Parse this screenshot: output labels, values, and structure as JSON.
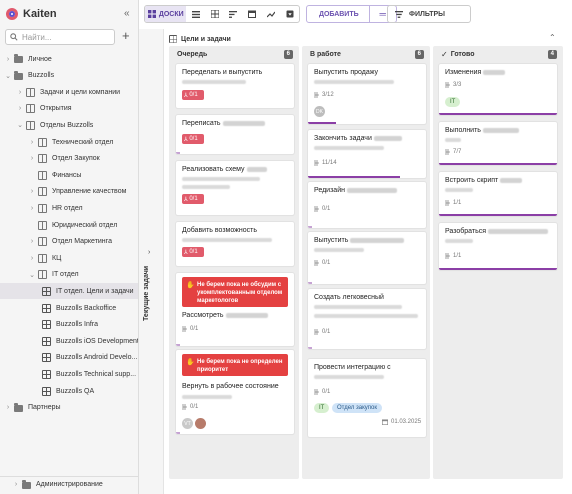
{
  "app": {
    "name": "Kaiten"
  },
  "sidebar": {
    "search_placeholder": "Найти...",
    "items": [
      {
        "label": "Личное",
        "type": "folder",
        "chevron": "›"
      },
      {
        "label": "Buzzolls",
        "type": "folder",
        "chevron": "⌄"
      },
      {
        "label": "Задачи и цели компании",
        "type": "space",
        "chevron": "›"
      },
      {
        "label": "Открытия",
        "type": "space",
        "chevron": "›"
      },
      {
        "label": "Отделы Buzzolls",
        "type": "space",
        "chevron": "⌄"
      },
      {
        "label": "Технический отдел",
        "type": "space",
        "chevron": "›"
      },
      {
        "label": "Отдел Закупок",
        "type": "space",
        "chevron": "›"
      },
      {
        "label": "Финансы",
        "type": "space",
        "chevron": ""
      },
      {
        "label": "Управление качеством",
        "type": "space",
        "chevron": "›"
      },
      {
        "label": "HR отдел",
        "type": "space",
        "chevron": "›"
      },
      {
        "label": "Юридический отдел",
        "type": "space",
        "chevron": ""
      },
      {
        "label": "Отдел Маркетинга",
        "type": "space",
        "chevron": "›"
      },
      {
        "label": "КЦ",
        "type": "space",
        "chevron": "›"
      },
      {
        "label": "IT отдел",
        "type": "space",
        "chevron": "⌄"
      },
      {
        "label": "IT отдел. Цели и задачи",
        "type": "board",
        "chevron": ""
      },
      {
        "label": "Buzzolls Backoffice",
        "type": "board",
        "chevron": ""
      },
      {
        "label": "Buzzolls Infra",
        "type": "board",
        "chevron": ""
      },
      {
        "label": "Buzzolls iOS Development",
        "type": "board",
        "chevron": ""
      },
      {
        "label": "Buzzolls Android Develo...",
        "type": "board",
        "chevron": ""
      },
      {
        "label": "Buzzolls Technical supp...",
        "type": "board",
        "chevron": ""
      },
      {
        "label": "Buzzolls QA",
        "type": "board",
        "chevron": ""
      },
      {
        "label": "Партнеры",
        "type": "folder",
        "chevron": "›"
      }
    ],
    "admin": "Администрирование"
  },
  "toolbar": {
    "view_boards": "ДОСКИ",
    "add_card": "ДОБАВИТЬ",
    "filters": "ФИЛЬТРЫ"
  },
  "lane": {
    "label": "Текущие задачи"
  },
  "board": {
    "title": "Цели и задачи"
  },
  "columns": [
    {
      "title": "Очередь",
      "count": "6"
    },
    {
      "title": "В работе",
      "count": "6"
    },
    {
      "title": "Готово",
      "count": "4"
    }
  ],
  "cards": {
    "q1": {
      "title": "Переделать и выпустить",
      "check": "0/1"
    },
    "q2": {
      "title": "Переписать",
      "check": "0/1"
    },
    "q3": {
      "title": "Реализовать схему",
      "check": "0/1"
    },
    "q4": {
      "title": "Добавить возможность",
      "check": "0/1"
    },
    "q5": {
      "note": "Не берем пока не обсудим с укомплектованным отделом маркетологов",
      "title": "Рассмотреть",
      "check": "0/1"
    },
    "q6": {
      "note": "Не берем пока не определен приоритет",
      "title": "Вернуть в рабочее состояние",
      "check": "0/1",
      "avatar": "VT"
    },
    "w1": {
      "title": "Выпустить продажу",
      "check": "3/12",
      "avatar": "DK"
    },
    "w2": {
      "title": "Закончить задачи",
      "check": "11/14"
    },
    "w3": {
      "title": "Редизайн",
      "check": "0/1"
    },
    "w4": {
      "title": "Выпустить",
      "check": "0/1"
    },
    "w5": {
      "title": "Создать легковесный",
      "check": "0/1"
    },
    "w6": {
      "title": "Провести интеграцию с",
      "check": "0/1",
      "tag1": "IT",
      "tag2": "Отдел закупок",
      "date": "01.03.2025"
    },
    "d1": {
      "title": "Изменения",
      "check": "3/3",
      "tag": "IT"
    },
    "d2": {
      "title": "Выполнить",
      "check": "7/7"
    },
    "d3": {
      "title": "Встроить скрипт",
      "check": "1/1"
    },
    "d4": {
      "title": "Разобраться",
      "check": "1/1"
    }
  },
  "colors": {
    "accent": "#6b52b0",
    "status_purple": "#8b3fa6",
    "alert_red": "#e44141",
    "checklist_red": "#e15b6b"
  }
}
